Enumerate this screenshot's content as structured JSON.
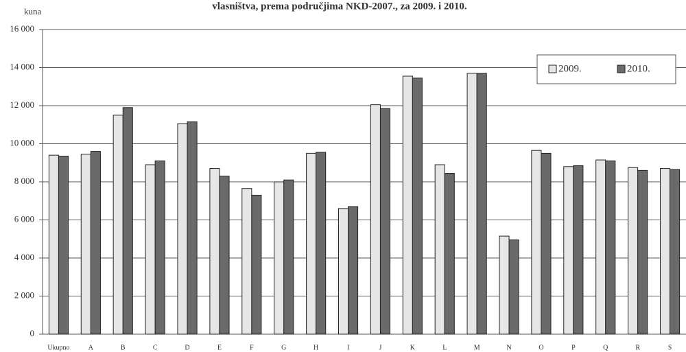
{
  "chart_data": {
    "type": "bar",
    "title": "vlasništva, prema područjima NKD-2007., za 2009. i 2010.",
    "y_label": "kuna",
    "categories": [
      "Ukupno",
      "A",
      "B",
      "C",
      "D",
      "E",
      "F",
      "G",
      "H",
      "I",
      "J",
      "K",
      "L",
      "M",
      "N",
      "O",
      "P",
      "Q",
      "R",
      "S"
    ],
    "series": [
      {
        "name": "2009.",
        "color": "#e6e6e6",
        "values": [
          9400,
          9450,
          11500,
          8900,
          11050,
          8700,
          7650,
          8000,
          9500,
          6600,
          12050,
          13550,
          8900,
          13700,
          5150,
          9650,
          8800,
          9150,
          8750,
          8700
        ]
      },
      {
        "name": "2010.",
        "color": "#6a6a6a",
        "values": [
          9350,
          9600,
          11900,
          9100,
          11150,
          8300,
          7300,
          8100,
          9550,
          6700,
          11850,
          13450,
          8450,
          13700,
          4950,
          9500,
          8850,
          9100,
          8600,
          8650
        ]
      }
    ],
    "ylim": [
      0,
      16000
    ],
    "yticks": [
      {
        "value": 0,
        "label": "0"
      },
      {
        "value": 2000,
        "label": "2 000"
      },
      {
        "value": 4000,
        "label": "4 000"
      },
      {
        "value": 6000,
        "label": "6 000"
      },
      {
        "value": 8000,
        "label": "8 000"
      },
      {
        "value": 10000,
        "label": "10 000"
      },
      {
        "value": 12000,
        "label": "12 000"
      },
      {
        "value": 14000,
        "label": "14 000"
      },
      {
        "value": 16000,
        "label": "16 000"
      }
    ],
    "grid": true,
    "legend": "upper right"
  }
}
